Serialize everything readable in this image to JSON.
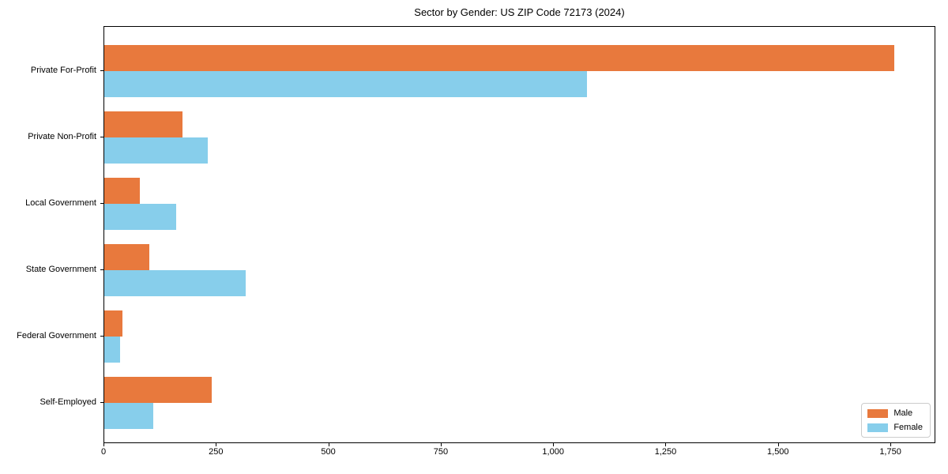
{
  "chart_data": {
    "type": "bar",
    "orientation": "horizontal",
    "title": "Sector by Gender: US ZIP Code 72173 (2024)",
    "categories": [
      "Private For-Profit",
      "Private Non-Profit",
      "Local Government",
      "State Government",
      "Federal Government",
      "Self-Employed"
    ],
    "series": [
      {
        "name": "Male",
        "color": "#e8793d",
        "values": [
          1760,
          175,
          80,
          100,
          40,
          240
        ]
      },
      {
        "name": "Female",
        "color": "#87ceeb",
        "values": [
          1075,
          230,
          160,
          315,
          35,
          110
        ]
      }
    ],
    "xlabel": "",
    "ylabel": "",
    "xlim": [
      0,
      1850
    ],
    "xticks": [
      {
        "value": 0,
        "label": "0"
      },
      {
        "value": 250,
        "label": "250"
      },
      {
        "value": 500,
        "label": "500"
      },
      {
        "value": 750,
        "label": "750"
      },
      {
        "value": 1000,
        "label": "1,000"
      },
      {
        "value": 1250,
        "label": "1,250"
      },
      {
        "value": 1500,
        "label": "1,500"
      },
      {
        "value": 1750,
        "label": "1,750"
      }
    ],
    "grid": false,
    "legend_position": "lower right",
    "spine_color": "#000000"
  }
}
